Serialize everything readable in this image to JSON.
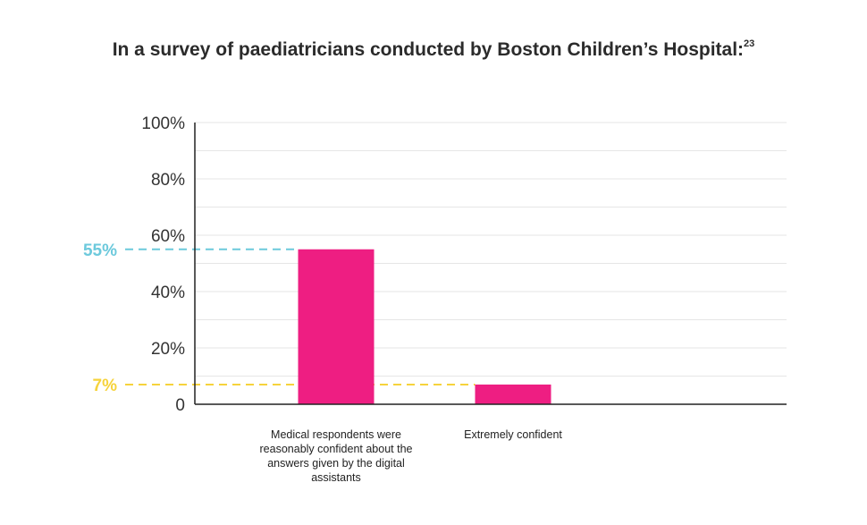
{
  "title": "In a survey of paediatricians conducted by Boston Children’s Hospital:",
  "footnote": "23",
  "colors": {
    "bar": "#ee1e82",
    "highlight_1": "#6cc9dc",
    "highlight_2": "#f6d33c",
    "axis": "#222222",
    "grid": "#e6e6e6"
  },
  "chart_data": {
    "type": "bar",
    "title": "In a survey of paediatricians conducted by Boston Children’s Hospital:",
    "categories": [
      "Medical respondents were reasonably confident about the answers given by the digital assistants",
      "Extremely confident"
    ],
    "values": [
      55,
      7
    ],
    "unit": "%",
    "ylim": [
      0,
      100
    ],
    "yticks": [
      0,
      20,
      40,
      60,
      80,
      100
    ],
    "ytick_labels": [
      "0",
      "20%",
      "40%",
      "60%",
      "80%",
      "100%"
    ],
    "highlight_labels": [
      "55%",
      "7%"
    ],
    "grid": true,
    "xlabel": "",
    "ylabel": ""
  }
}
